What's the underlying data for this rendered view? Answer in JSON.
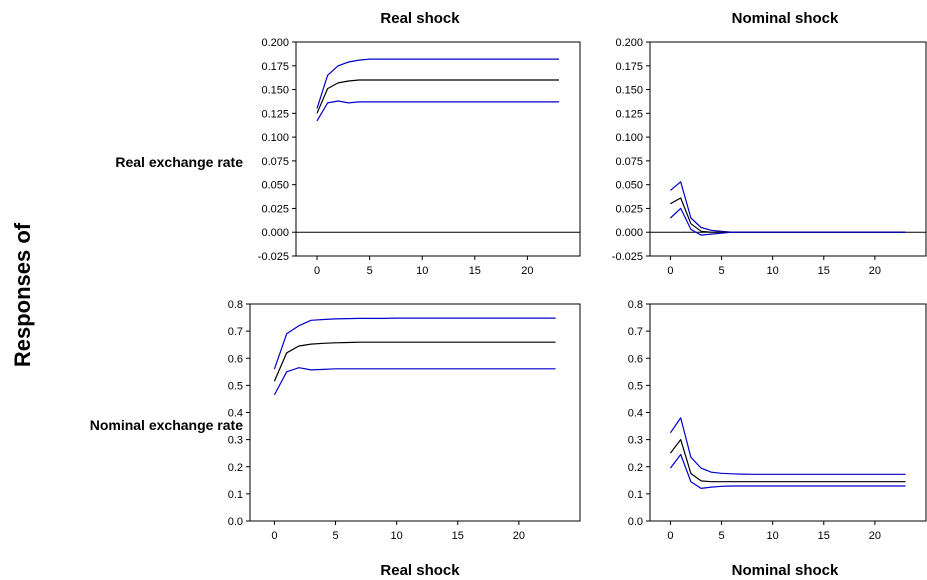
{
  "figure": {
    "top_titles": [
      "Real shock",
      "Nominal shock"
    ],
    "bottom_titles": [
      "Real shock",
      "Nominal shock"
    ],
    "row_labels": [
      "Real exchange rate",
      "Nominal exchange rate"
    ],
    "side_label": "Responses of"
  },
  "chart_data": [
    {
      "type": "line",
      "panel": "top-left",
      "x": [
        0,
        1,
        2,
        3,
        4,
        5,
        6,
        7,
        8,
        9,
        10,
        11,
        12,
        13,
        14,
        15,
        16,
        17,
        18,
        19,
        20,
        21,
        22,
        23
      ],
      "xticks": [
        0,
        5,
        10,
        15,
        20
      ],
      "xlim": [
        -2,
        25
      ],
      "ylim": [
        -0.025,
        0.2
      ],
      "yticks": [
        "0.200",
        "0.175",
        "0.150",
        "0.125",
        "0.100",
        "0.075",
        "0.050",
        "0.025",
        "0.000",
        "-0.025"
      ],
      "zero_line": true,
      "series": [
        {
          "color": "#0000cc",
          "values": [
            0.13,
            0.165,
            0.175,
            0.179,
            0.181,
            0.182,
            0.182,
            0.182,
            0.182,
            0.182,
            0.182,
            0.182,
            0.182,
            0.182,
            0.182,
            0.182,
            0.182,
            0.182,
            0.182,
            0.182,
            0.182,
            0.182,
            0.182,
            0.182
          ]
        },
        {
          "color": "#000000",
          "values": [
            0.125,
            0.151,
            0.157,
            0.159,
            0.16,
            0.16,
            0.16,
            0.16,
            0.16,
            0.16,
            0.16,
            0.16,
            0.16,
            0.16,
            0.16,
            0.16,
            0.16,
            0.16,
            0.16,
            0.16,
            0.16,
            0.16,
            0.16,
            0.16
          ]
        },
        {
          "color": "#0000cc",
          "values": [
            0.117,
            0.136,
            0.138,
            0.136,
            0.137,
            0.137,
            0.137,
            0.137,
            0.137,
            0.137,
            0.137,
            0.137,
            0.137,
            0.137,
            0.137,
            0.137,
            0.137,
            0.137,
            0.137,
            0.137,
            0.137,
            0.137,
            0.137,
            0.137
          ]
        }
      ]
    },
    {
      "type": "line",
      "panel": "top-right",
      "x": [
        0,
        1,
        2,
        3,
        4,
        5,
        6,
        7,
        8,
        9,
        10,
        11,
        12,
        13,
        14,
        15,
        16,
        17,
        18,
        19,
        20,
        21,
        22,
        23
      ],
      "xticks": [
        0,
        5,
        10,
        15,
        20
      ],
      "xlim": [
        -2,
        25
      ],
      "ylim": [
        -0.025,
        0.2
      ],
      "yticks": [
        "0.200",
        "0.175",
        "0.150",
        "0.125",
        "0.100",
        "0.075",
        "0.050",
        "0.025",
        "0.000",
        "-0.025"
      ],
      "zero_line": true,
      "series": [
        {
          "color": "#0000cc",
          "values": [
            0.044,
            0.053,
            0.015,
            0.005,
            0.002,
            0.001,
            0,
            0,
            0,
            0,
            0,
            0,
            0,
            0,
            0,
            0,
            0,
            0,
            0,
            0,
            0,
            0,
            0,
            0
          ]
        },
        {
          "color": "#000000",
          "values": [
            0.03,
            0.036,
            0.009,
            0.001,
            0.0,
            0.0,
            0,
            0,
            0,
            0,
            0,
            0,
            0,
            0,
            0,
            0,
            0,
            0,
            0,
            0,
            0,
            0,
            0,
            0
          ]
        },
        {
          "color": "#0000cc",
          "values": [
            0.015,
            0.025,
            0.003,
            -0.003,
            -0.002,
            -0.001,
            0,
            0,
            0,
            0,
            0,
            0,
            0,
            0,
            0,
            0,
            0,
            0,
            0,
            0,
            0,
            0,
            0,
            0
          ]
        }
      ]
    },
    {
      "type": "line",
      "panel": "bottom-left",
      "x": [
        0,
        1,
        2,
        3,
        4,
        5,
        6,
        7,
        8,
        9,
        10,
        11,
        12,
        13,
        14,
        15,
        16,
        17,
        18,
        19,
        20,
        21,
        22,
        23
      ],
      "xticks": [
        0,
        5,
        10,
        15,
        20
      ],
      "xlim": [
        -2,
        25
      ],
      "ylim": [
        0,
        0.8
      ],
      "yticks": [
        "0.8",
        "0.7",
        "0.6",
        "0.5",
        "0.4",
        "0.3",
        "0.2",
        "0.1",
        "0.0"
      ],
      "zero_line": false,
      "series": [
        {
          "color": "#0000cc",
          "values": [
            0.56,
            0.69,
            0.72,
            0.74,
            0.743,
            0.745,
            0.746,
            0.747,
            0.747,
            0.747,
            0.748,
            0.748,
            0.748,
            0.748,
            0.748,
            0.748,
            0.748,
            0.748,
            0.748,
            0.748,
            0.748,
            0.748,
            0.748,
            0.748
          ]
        },
        {
          "color": "#000000",
          "values": [
            0.515,
            0.62,
            0.645,
            0.652,
            0.655,
            0.657,
            0.658,
            0.659,
            0.659,
            0.659,
            0.659,
            0.659,
            0.659,
            0.659,
            0.659,
            0.659,
            0.659,
            0.659,
            0.659,
            0.659,
            0.659,
            0.659,
            0.659,
            0.659
          ]
        },
        {
          "color": "#0000cc",
          "values": [
            0.465,
            0.55,
            0.565,
            0.557,
            0.559,
            0.561,
            0.561,
            0.561,
            0.561,
            0.561,
            0.561,
            0.561,
            0.561,
            0.561,
            0.561,
            0.561,
            0.561,
            0.561,
            0.561,
            0.561,
            0.561,
            0.561,
            0.561,
            0.561
          ]
        }
      ]
    },
    {
      "type": "line",
      "panel": "bottom-right",
      "x": [
        0,
        1,
        2,
        3,
        4,
        5,
        6,
        7,
        8,
        9,
        10,
        11,
        12,
        13,
        14,
        15,
        16,
        17,
        18,
        19,
        20,
        21,
        22,
        23
      ],
      "xticks": [
        0,
        5,
        10,
        15,
        20
      ],
      "xlim": [
        -2,
        25
      ],
      "ylim": [
        0,
        0.8
      ],
      "yticks": [
        "0.8",
        "0.7",
        "0.6",
        "0.5",
        "0.4",
        "0.3",
        "0.2",
        "0.1",
        "0.0"
      ],
      "zero_line": false,
      "series": [
        {
          "color": "#0000cc",
          "values": [
            0.325,
            0.38,
            0.235,
            0.195,
            0.18,
            0.176,
            0.174,
            0.173,
            0.172,
            0.172,
            0.172,
            0.172,
            0.172,
            0.172,
            0.172,
            0.172,
            0.172,
            0.172,
            0.172,
            0.172,
            0.172,
            0.172,
            0.172,
            0.172
          ]
        },
        {
          "color": "#000000",
          "values": [
            0.25,
            0.3,
            0.175,
            0.148,
            0.145,
            0.145,
            0.145,
            0.145,
            0.145,
            0.145,
            0.145,
            0.145,
            0.145,
            0.145,
            0.145,
            0.145,
            0.145,
            0.145,
            0.145,
            0.145,
            0.145,
            0.145,
            0.145,
            0.145
          ]
        },
        {
          "color": "#0000cc",
          "values": [
            0.195,
            0.245,
            0.145,
            0.12,
            0.125,
            0.128,
            0.129,
            0.129,
            0.129,
            0.129,
            0.129,
            0.129,
            0.129,
            0.129,
            0.129,
            0.129,
            0.129,
            0.129,
            0.129,
            0.129,
            0.129,
            0.129,
            0.129,
            0.129
          ]
        }
      ]
    }
  ]
}
